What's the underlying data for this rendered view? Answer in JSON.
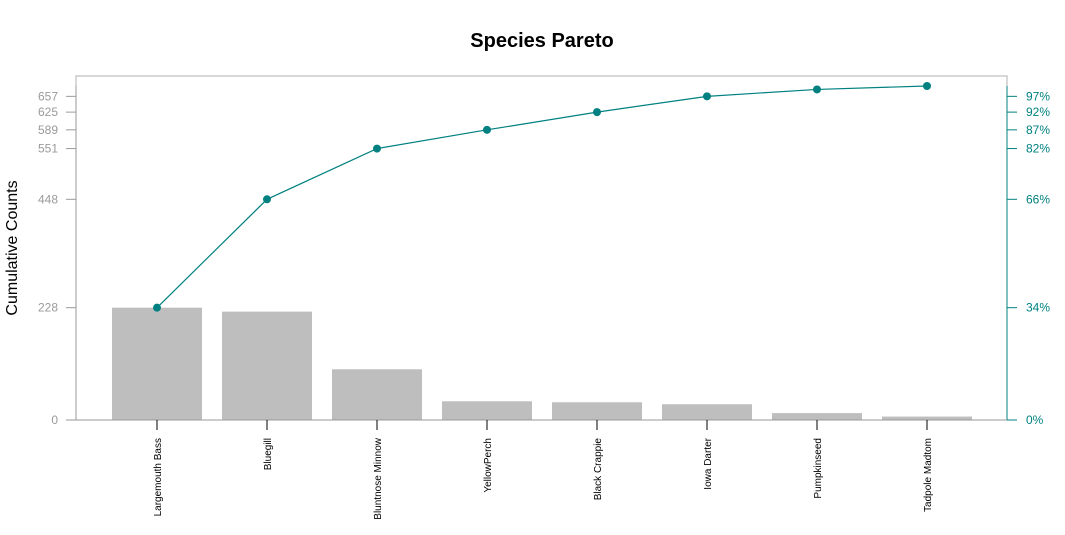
{
  "chart_data": {
    "type": "bar",
    "title": "Species Pareto",
    "xlabel": "",
    "ylabel": "Cumulative Counts",
    "categories": [
      "Largemouth Bass",
      "Bluegill",
      "Bluntnose Minnow",
      "YellowPerch",
      "Black Crappie",
      "Iowa Darter",
      "Pumpkinseed",
      "Tadpole Madtom"
    ],
    "values": [
      228,
      220,
      103,
      38,
      36,
      32,
      14,
      7
    ],
    "cumulative": [
      228,
      448,
      551,
      589,
      625,
      657,
      671,
      678
    ],
    "cumulative_percent": [
      34,
      66,
      82,
      87,
      92,
      97,
      99,
      100
    ],
    "ylim": [
      0,
      678
    ],
    "left_axis_ticks": [
      0,
      228,
      448,
      551,
      589,
      625,
      657
    ],
    "left_axis_labels": [
      "0",
      "228",
      "448",
      "551",
      "589",
      "625",
      "657"
    ],
    "right_axis_labels": [
      "0%",
      "34%",
      "66%",
      "82%",
      "87%",
      "92%",
      "97%"
    ],
    "grid": false,
    "legend": "none",
    "colors": {
      "bars": "#bebebe",
      "line": "#008080",
      "points": "#008080",
      "left_axis": "#9a9a9a",
      "right_axis": "#008080"
    }
  }
}
